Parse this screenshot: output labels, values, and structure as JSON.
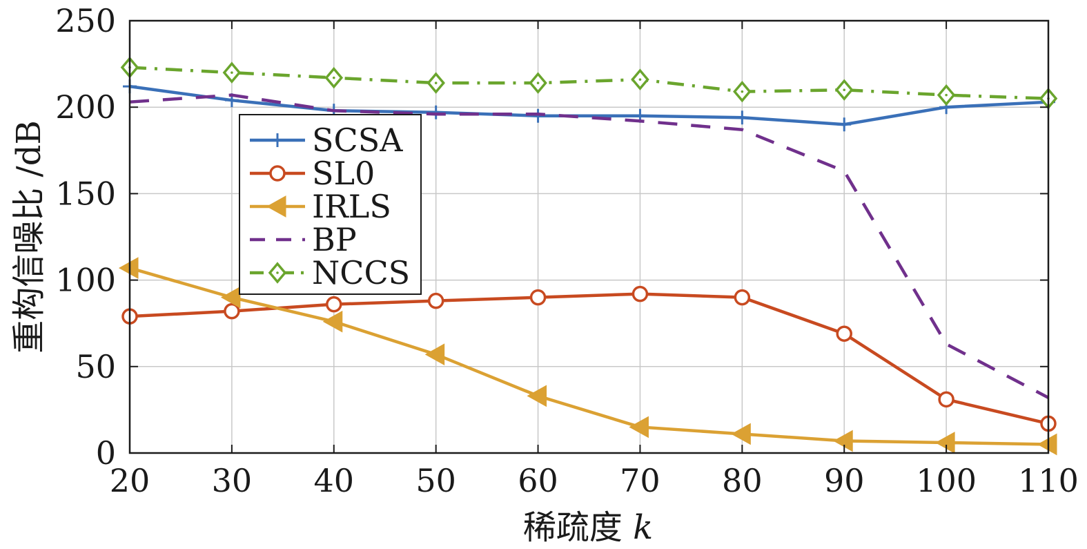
{
  "chart_data": {
    "type": "line",
    "xlabel": "稀疏度",
    "xlabel_var": "k",
    "ylabel": "重构信噪比 /dB",
    "xlim": [
      20,
      110
    ],
    "ylim": [
      0,
      250
    ],
    "x_ticks": [
      20,
      30,
      40,
      50,
      60,
      70,
      80,
      90,
      100,
      110
    ],
    "y_ticks": [
      0,
      50,
      100,
      150,
      200,
      250
    ],
    "grid": true,
    "legend_position": "center-left",
    "x": [
      20,
      30,
      40,
      50,
      60,
      70,
      80,
      90,
      100,
      110
    ],
    "series": [
      {
        "name": "SCSA",
        "color": "#3a70b8",
        "marker": "plus",
        "dash": "solid",
        "values": [
          212,
          204,
          198,
          197,
          195,
          195,
          194,
          190,
          200,
          203
        ]
      },
      {
        "name": "SL0",
        "color": "#c84a20",
        "marker": "circle",
        "dash": "solid",
        "values": [
          79,
          82,
          86,
          88,
          90,
          92,
          90,
          69,
          31,
          17
        ]
      },
      {
        "name": "IRLS",
        "color": "#dba133",
        "marker": "triangle-left",
        "dash": "solid",
        "values": [
          107,
          90,
          76,
          57,
          33,
          15,
          11,
          7,
          6,
          5
        ]
      },
      {
        "name": "BP",
        "color": "#70308c",
        "marker": "none",
        "dash": "dashed",
        "values": [
          203,
          207,
          198,
          196,
          196,
          192,
          187,
          163,
          63,
          32
        ]
      },
      {
        "name": "NCCS",
        "color": "#6aa52d",
        "marker": "diamond",
        "dash": "dashdot",
        "values": [
          223,
          220,
          217,
          214,
          214,
          216,
          209,
          210,
          207,
          205
        ]
      }
    ]
  }
}
